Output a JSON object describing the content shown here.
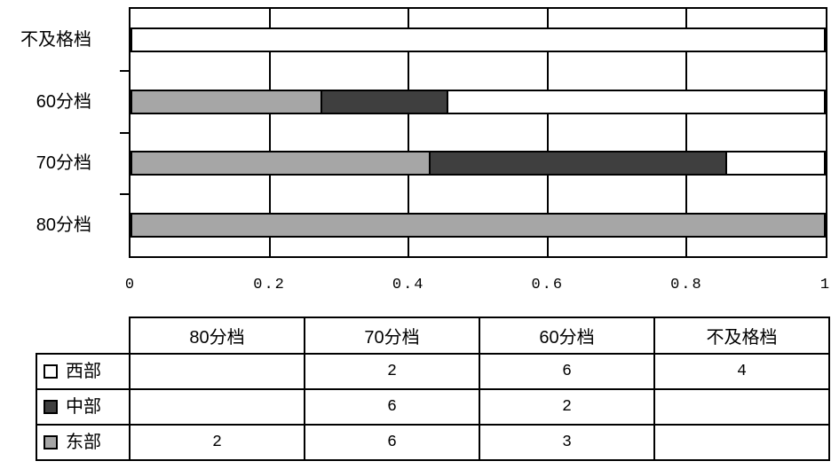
{
  "page": {
    "background": "#ffffff"
  },
  "colors": {
    "line": "#000000",
    "text": "#000000"
  },
  "chart_data": {
    "type": "bar",
    "orientation": "horizontal",
    "stacking": "100%",
    "title": "",
    "xlabel": "",
    "ylabel": "",
    "xlim": [
      0,
      1
    ],
    "x_ticks": [
      "0",
      "0.2",
      "0.4",
      "0.6",
      "0.8",
      "1"
    ],
    "grid": "vertical-major",
    "legend_position": "table-left",
    "categories": [
      "不及格档",
      "60分档",
      "70分档",
      "80分档"
    ],
    "series": [
      {
        "name": "东部",
        "key": "east",
        "color": "#a6a6a6",
        "values": [
          0,
          3,
          6,
          2
        ]
      },
      {
        "name": "中部",
        "key": "central",
        "color": "#3f3f3f",
        "values": [
          0,
          2,
          6,
          0
        ]
      },
      {
        "name": "西部",
        "key": "west",
        "color": "#ffffff",
        "values": [
          4,
          6,
          2,
          0
        ]
      }
    ]
  },
  "table": {
    "columns": [
      "80分档",
      "70分档",
      "60分档",
      "不及格档"
    ],
    "rows": [
      {
        "key": "west",
        "label": "西部",
        "swatch": "#ffffff",
        "values": [
          "",
          "2",
          "6",
          "4"
        ]
      },
      {
        "key": "central",
        "label": "中部",
        "swatch": "#3f3f3f",
        "values": [
          "",
          "6",
          "2",
          ""
        ]
      },
      {
        "key": "east",
        "label": "东部",
        "swatch": "#a6a6a6",
        "values": [
          "2",
          "6",
          "3",
          ""
        ]
      }
    ]
  }
}
